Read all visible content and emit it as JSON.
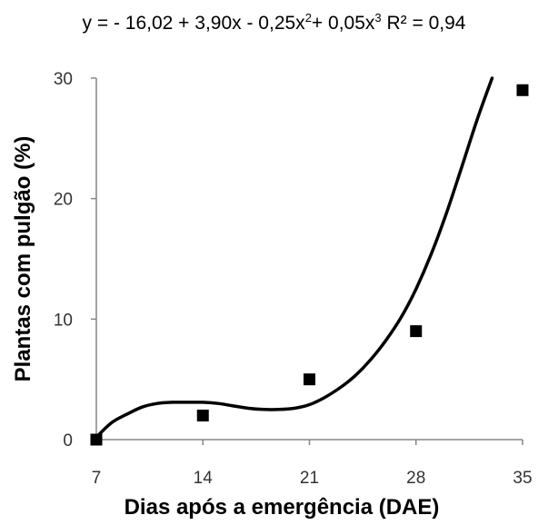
{
  "chart_data": {
    "type": "scatter",
    "title": {
      "prefix": "y = - 16,02 + 3,90x - 0,25x",
      "exp1": "2",
      "mid": "+ 0,05x",
      "exp2": "3",
      "suffix": " R² = 0,94"
    },
    "xlabel": "Dias após a emergência (DAE)",
    "ylabel": "Plantas com pulgão (%)",
    "x_ticks": [
      "7",
      "14",
      "21",
      "28",
      "35"
    ],
    "y_ticks": [
      "0",
      "10",
      "20",
      "30"
    ],
    "xlim": [
      7,
      35
    ],
    "ylim": [
      0,
      30
    ],
    "grid": false,
    "points": [
      {
        "x": 7,
        "y": 0
      },
      {
        "x": 14,
        "y": 2
      },
      {
        "x": 21,
        "y": 5
      },
      {
        "x": 28,
        "y": 9
      },
      {
        "x": 35,
        "y": 29
      }
    ],
    "fit_curve": [
      {
        "x": 7,
        "y": 0.2
      },
      {
        "x": 8,
        "y": 1.4
      },
      {
        "x": 9,
        "y": 2.1
      },
      {
        "x": 10,
        "y": 2.7
      },
      {
        "x": 11,
        "y": 3.0
      },
      {
        "x": 12,
        "y": 3.1
      },
      {
        "x": 13,
        "y": 3.1
      },
      {
        "x": 14,
        "y": 3.1
      },
      {
        "x": 15,
        "y": 3.0
      },
      {
        "x": 16,
        "y": 2.8
      },
      {
        "x": 17,
        "y": 2.6
      },
      {
        "x": 18,
        "y": 2.5
      },
      {
        "x": 19,
        "y": 2.5
      },
      {
        "x": 20,
        "y": 2.6
      },
      {
        "x": 21,
        "y": 2.9
      },
      {
        "x": 22,
        "y": 3.5
      },
      {
        "x": 23,
        "y": 4.3
      },
      {
        "x": 24,
        "y": 5.3
      },
      {
        "x": 25,
        "y": 6.6
      },
      {
        "x": 26,
        "y": 8.2
      },
      {
        "x": 27,
        "y": 10.1
      },
      {
        "x": 28,
        "y": 12.5
      },
      {
        "x": 29,
        "y": 15.4
      },
      {
        "x": 30,
        "y": 18.8
      },
      {
        "x": 31,
        "y": 22.6
      },
      {
        "x": 32,
        "y": 26.5
      },
      {
        "x": 33,
        "y": 30.0
      }
    ],
    "marker": "square",
    "colors": {
      "points": "#000000",
      "curve": "#000000",
      "axis": "#868686"
    }
  }
}
